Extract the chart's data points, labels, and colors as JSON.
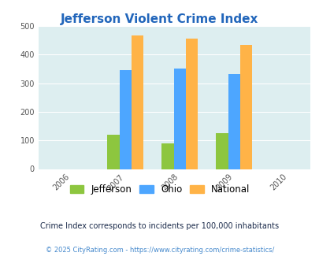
{
  "title": "Jefferson Violent Crime Index",
  "years": [
    2007,
    2008,
    2009
  ],
  "jefferson": [
    120,
    90,
    125
  ],
  "ohio": [
    347,
    350,
    333
  ],
  "national": [
    468,
    455,
    433
  ],
  "jefferson_color": "#8dc63f",
  "ohio_color": "#4da6ff",
  "national_color": "#ffb347",
  "bg_color": "#ddeef0",
  "ylim": [
    0,
    500
  ],
  "yticks": [
    0,
    100,
    200,
    300,
    400,
    500
  ],
  "xticks": [
    2006,
    2007,
    2008,
    2009,
    2010
  ],
  "legend_labels": [
    "Jefferson",
    "Ohio",
    "National"
  ],
  "footnote1": "Crime Index corresponds to incidents per 100,000 inhabitants",
  "footnote2": "© 2025 CityRating.com - https://www.cityrating.com/crime-statistics/",
  "title_color": "#2266bb",
  "footnote1_color": "#1a2a4a",
  "footnote2_color": "#4488cc",
  "bar_width": 0.22,
  "xlim": [
    2005.4,
    2010.4
  ]
}
